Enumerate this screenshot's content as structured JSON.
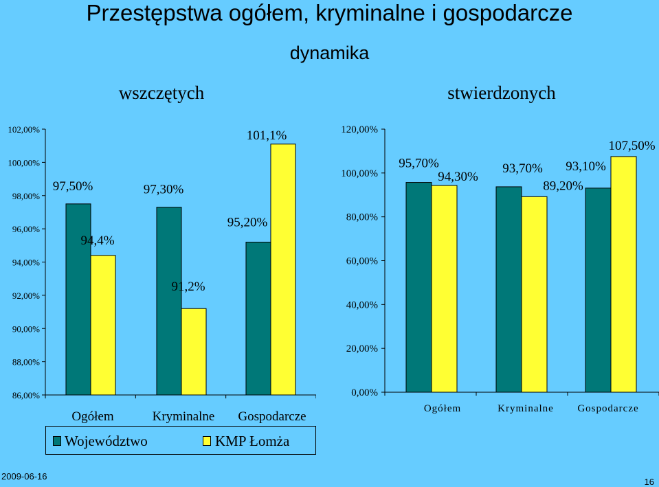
{
  "slide": {
    "title": "Przestępstwa ogółem, kryminalne i gospodarcze",
    "subtitle": "dynamika",
    "date": "2009-06-16",
    "page_number": "16"
  },
  "colors": {
    "series_1": "#007878",
    "series_2": "#ffff33",
    "background": "#66ccff"
  },
  "legend": {
    "items": [
      "Województwo",
      "KMP Łomża"
    ]
  },
  "chart_data": [
    {
      "type": "bar",
      "title": "wszczętych",
      "categories": [
        "Ogółem",
        "Kryminalne",
        "Gospodarcze"
      ],
      "ylim": [
        86,
        102
      ],
      "yticks": [
        "102,00%",
        "100,00%",
        "98,00%",
        "96,00%",
        "94,00%",
        "92,00%",
        "90,00%",
        "88,00%",
        "86,00%"
      ],
      "series": [
        {
          "name": "Województwo",
          "values": [
            97.5,
            97.3,
            95.2
          ],
          "labels": [
            "97,50%",
            "97,30%",
            "95,20%"
          ]
        },
        {
          "name": "KMP Łomża",
          "values": [
            94.4,
            91.2,
            101.1
          ],
          "labels": [
            "94,4%",
            "91,2%",
            "101,1%"
          ]
        }
      ]
    },
    {
      "type": "bar",
      "title": "stwierdzonych",
      "categories": [
        "Ogółem",
        "Kryminalne",
        "Gospodarcze"
      ],
      "ylim": [
        0,
        120
      ],
      "yticks": [
        "120,00%",
        "100,00%",
        "80,00%",
        "60,00%",
        "40,00%",
        "20,00%",
        "0,00%"
      ],
      "series": [
        {
          "name": "Województwo",
          "values": [
            95.7,
            93.7,
            93.1
          ],
          "labels": [
            "95,70%",
            "93,70%",
            "93,10%"
          ]
        },
        {
          "name": "KMP Łomża",
          "values": [
            94.3,
            89.2,
            107.5
          ],
          "labels": [
            "94,30%",
            "89,20%",
            "107,50%"
          ]
        }
      ]
    }
  ]
}
